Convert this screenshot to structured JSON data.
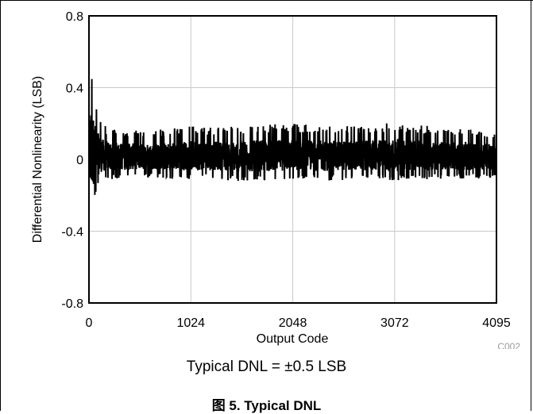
{
  "chart_data": {
    "type": "line",
    "xlabel": "Output Code",
    "ylabel": "Differential Nonlinearity (LSB)",
    "xlim": [
      0,
      4095
    ],
    "ylim": [
      -0.8,
      0.8
    ],
    "x_ticks": [
      0,
      1024,
      2048,
      3072,
      4095
    ],
    "y_ticks": [
      0.8,
      0.4,
      0,
      -0.4,
      -0.8
    ],
    "y_tick_labels": [
      "0.8",
      "0.4",
      "0",
      "-0.4",
      "-0.8"
    ],
    "grid": true,
    "legend": "none",
    "series_color": "#000000",
    "series": [
      {
        "x": [
          0,
          20,
          40,
          60,
          80,
          100,
          120,
          160,
          200,
          300,
          500,
          800,
          1024,
          1300,
          1600,
          2048,
          2400,
          2800,
          3072,
          3500,
          3800,
          4095
        ],
        "max": [
          0.45,
          0.57,
          0.45,
          0.38,
          0.3,
          0.25,
          0.22,
          0.19,
          0.18,
          0.17,
          0.16,
          0.17,
          0.19,
          0.18,
          0.19,
          0.2,
          0.19,
          0.19,
          0.21,
          0.18,
          0.17,
          0.15
        ],
        "min": [
          -0.32,
          -0.38,
          -0.28,
          -0.22,
          -0.17,
          -0.15,
          -0.13,
          -0.12,
          -0.11,
          -0.11,
          -0.1,
          -0.11,
          -0.11,
          -0.11,
          -0.13,
          -0.11,
          -0.12,
          -0.11,
          -0.12,
          -0.11,
          -0.11,
          -0.1
        ]
      }
    ],
    "annotation": "C002"
  },
  "note": "Typical DNL = ±0.5 LSB",
  "caption": "图 5. Typical DNL"
}
